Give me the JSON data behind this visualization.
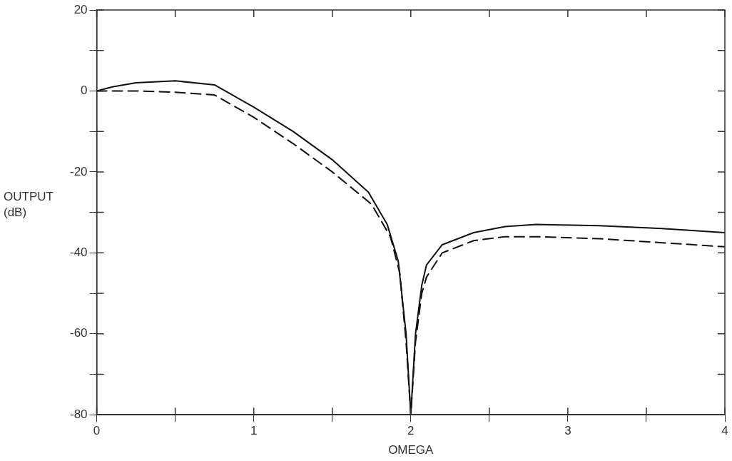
{
  "chart_data": {
    "type": "line",
    "xlabel": "OMEGA",
    "ylabel": "OUTPUT (dB)",
    "xlim": [
      0,
      4
    ],
    "ylim": [
      -80,
      20
    ],
    "xticks": [
      0,
      {
        "value": 0.5,
        "label": null
      },
      1,
      {
        "value": 1.5,
        "label": null
      },
      2,
      {
        "value": 2.5,
        "label": null
      },
      3,
      {
        "value": 3.5,
        "label": null
      },
      4
    ],
    "yticks": [
      -80,
      {
        "value": -70,
        "label": null
      },
      -60,
      {
        "value": -50,
        "label": null
      },
      -40,
      {
        "value": -30,
        "label": null
      },
      -20,
      {
        "value": -10,
        "label": null
      },
      0,
      {
        "value": 10,
        "label": null
      },
      20
    ],
    "grid": false,
    "legend": false,
    "marker": "none",
    "series": [
      {
        "color": "#111111",
        "line_style": "solid",
        "x": [
          0,
          0.1,
          0.25,
          0.5,
          0.75,
          1,
          1.25,
          1.5,
          1.73,
          1.85,
          1.92,
          1.97,
          2,
          2.03,
          2.07,
          2.1,
          2.2,
          2.4,
          2.6,
          2.8,
          3.2,
          3.6,
          4
        ],
        "values": [
          0,
          1,
          2,
          2.5,
          1.5,
          -4,
          -10,
          -17,
          -25,
          -33,
          -42,
          -60,
          -80,
          -60,
          -48,
          -43,
          -38,
          -35,
          -33.5,
          -33,
          -33.3,
          -34,
          -35
        ]
      },
      {
        "color": "#111111",
        "line_style": "dashed",
        "x": [
          0,
          0.25,
          0.5,
          0.75,
          1,
          1.25,
          1.5,
          1.75,
          1.87,
          1.93,
          1.97,
          2,
          2.03,
          2.07,
          2.1,
          2.2,
          2.4,
          2.6,
          2.8,
          3.2,
          3.6,
          4
        ],
        "values": [
          0,
          0,
          -0.3,
          -1,
          -6.5,
          -13,
          -20,
          -28,
          -36,
          -45,
          -62,
          -80,
          -62,
          -50,
          -46,
          -40,
          -37,
          -36,
          -36,
          -36.5,
          -37.5,
          -38.5
        ]
      }
    ]
  }
}
